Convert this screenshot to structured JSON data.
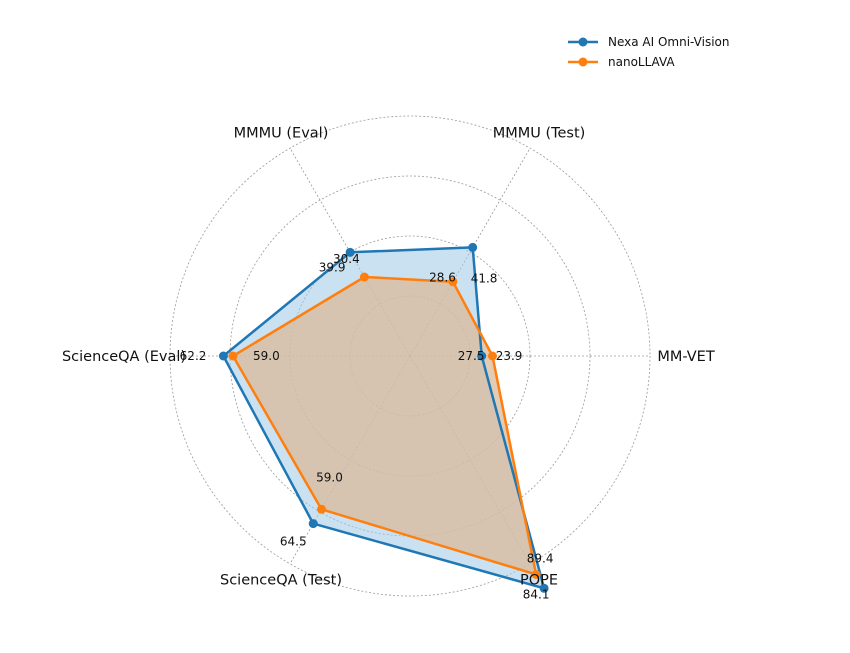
{
  "chart_data": {
    "type": "radar",
    "axes": [
      "MM-VET",
      "MMMU (Test)",
      "MMMU (Eval)",
      "ScienceQA (Eval)",
      "ScienceQA (Test)",
      "POPE"
    ],
    "series": [
      {
        "name": "Nexa AI Omni-Vision",
        "color": "#1f77b4",
        "fill": "#9ec9e6",
        "values": [
          23.9,
          41.8,
          39.9,
          62.2,
          64.5,
          89.4
        ],
        "labels": [
          "23.9",
          "41.8",
          "39.9",
          "62.2",
          "64.5",
          "89.4"
        ]
      },
      {
        "name": "nanoLLAVA",
        "color": "#ff7f0e",
        "fill": "#d9b99b",
        "values": [
          27.5,
          28.6,
          30.4,
          59.0,
          59.0,
          84.1
        ],
        "labels": [
          "27.5",
          "28.6",
          "30.4",
          "59.0",
          "59.0",
          "84.1"
        ]
      }
    ],
    "grid": true,
    "legend_position": "top-right"
  }
}
